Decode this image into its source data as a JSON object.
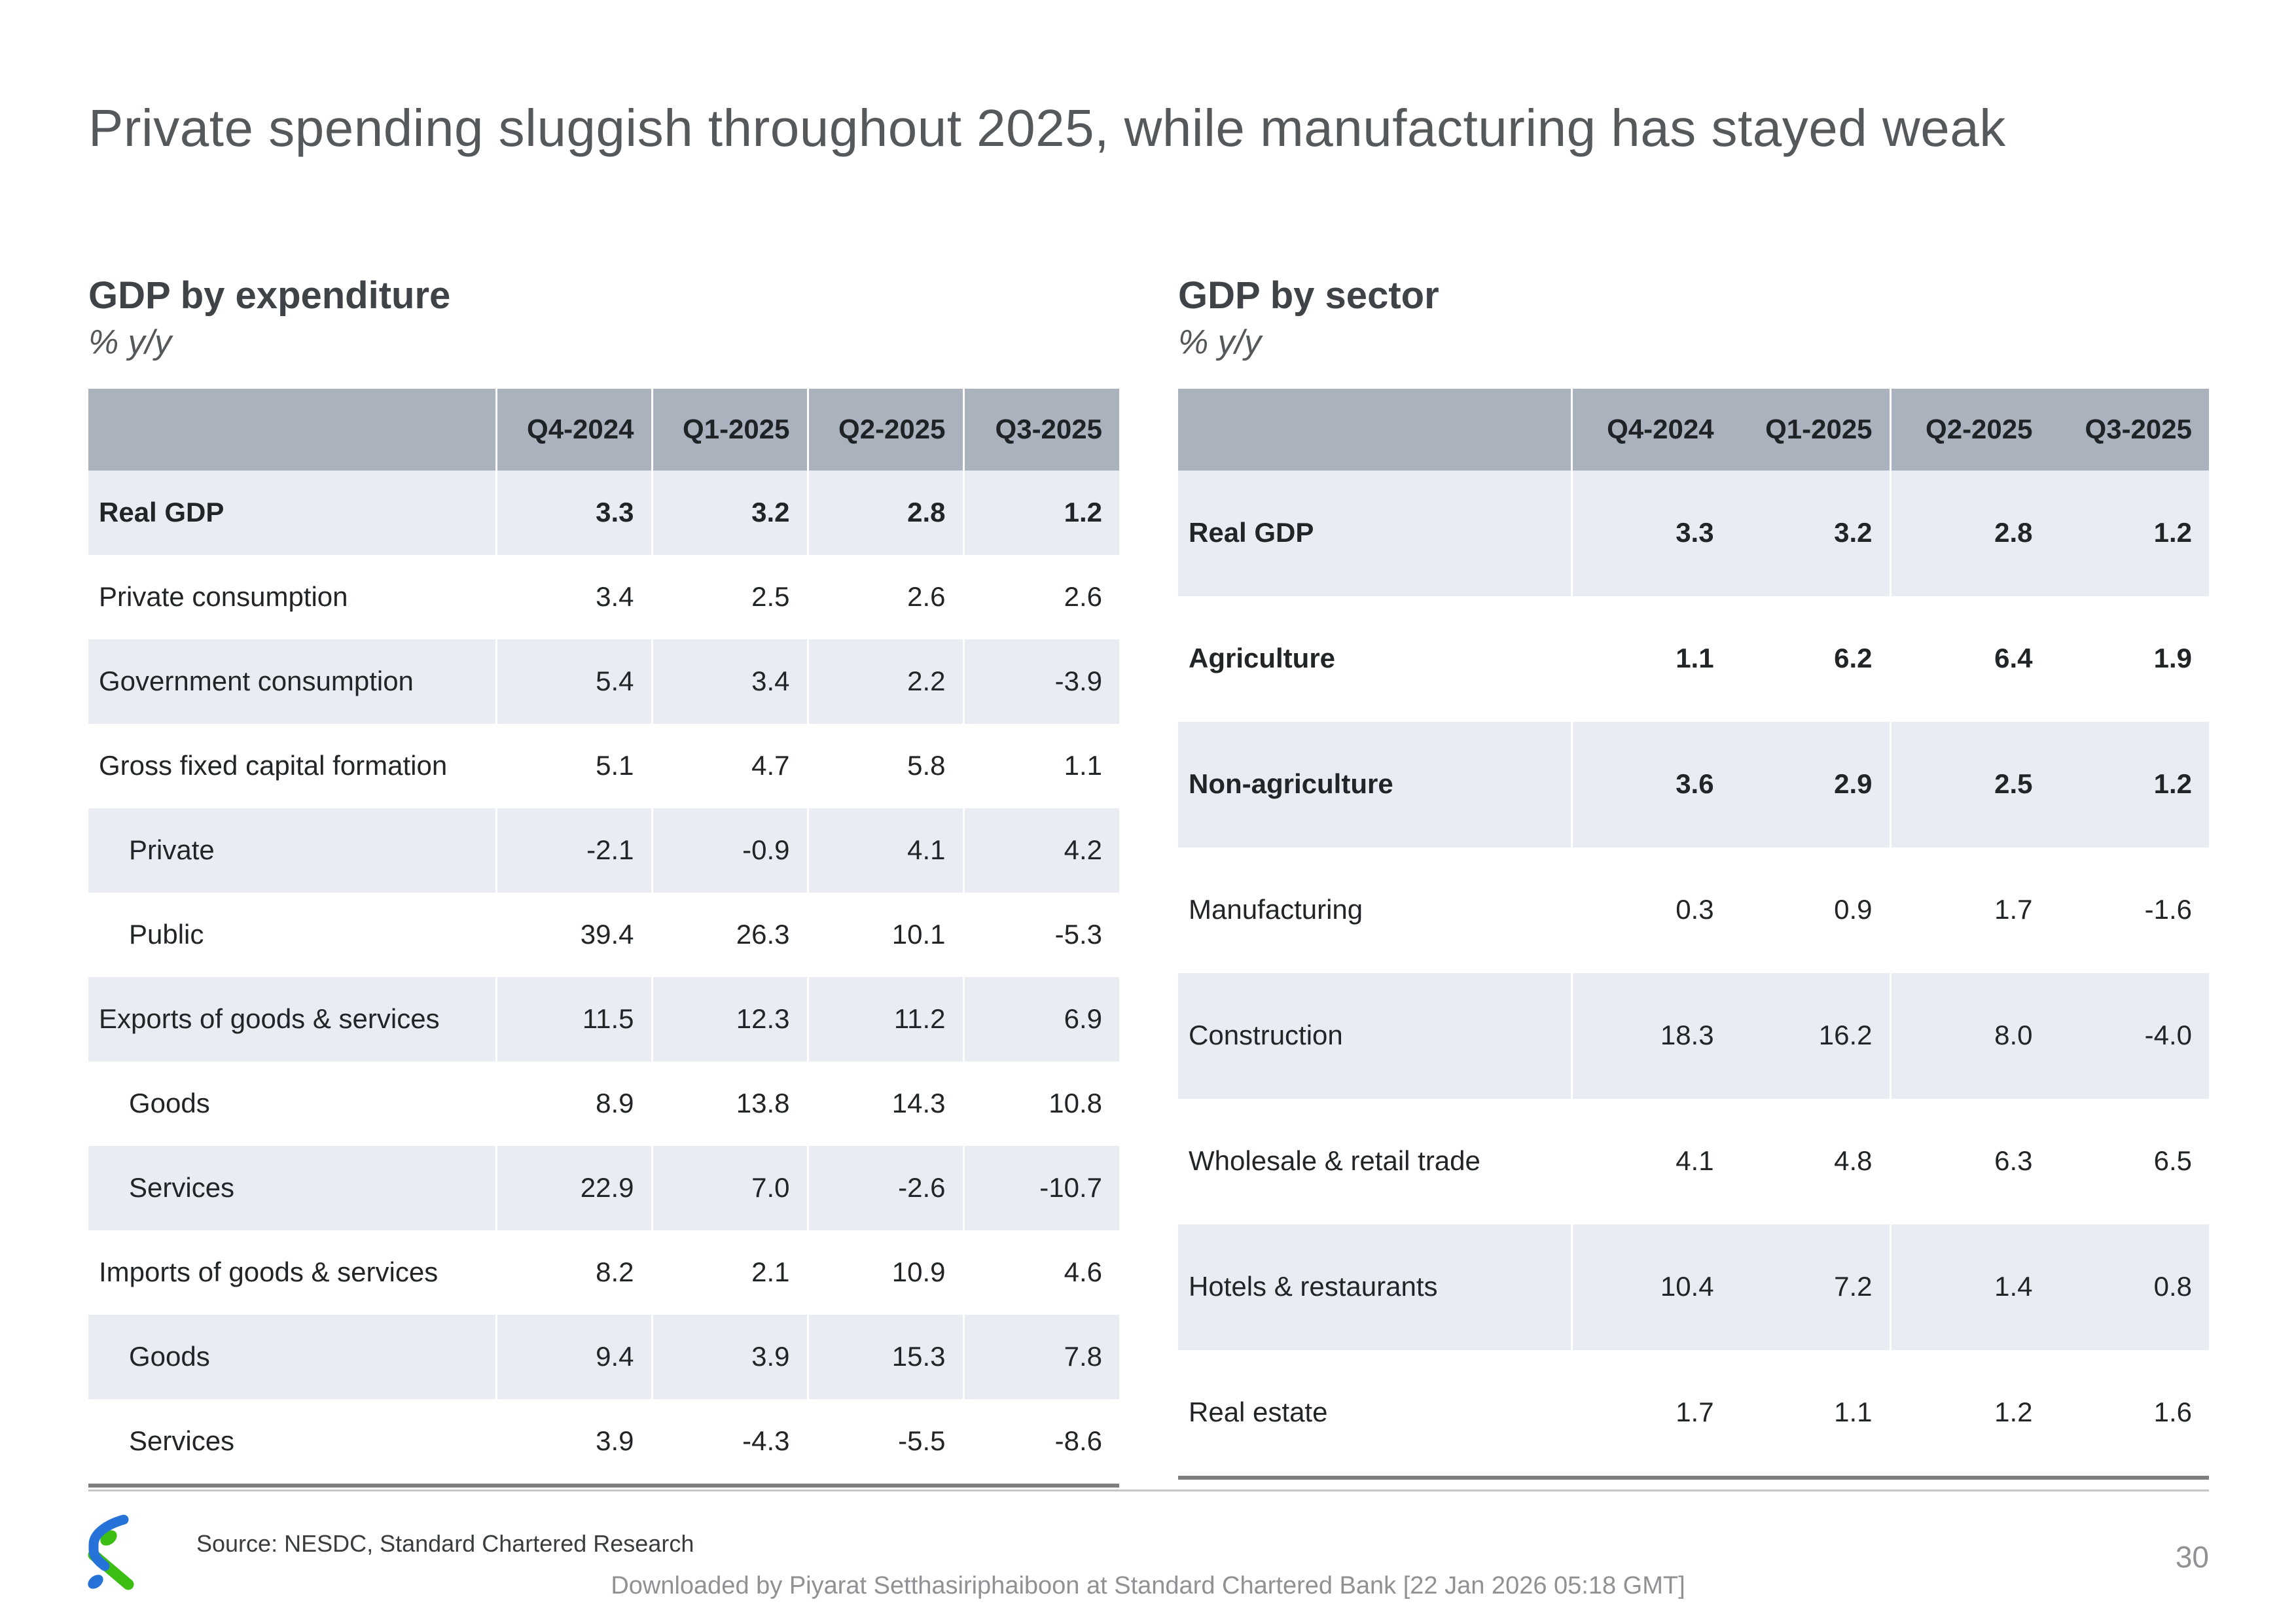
{
  "slide": {
    "title": "Private spending sluggish throughout 2025, while manufacturing has stayed weak",
    "page_number": "30"
  },
  "tables": [
    {
      "title": "GDP by expenditure",
      "subtitle": "% y/y",
      "columns": [
        "Q4-2024",
        "Q1-2025",
        "Q2-2025",
        "Q3-2025"
      ],
      "rows": [
        {
          "label": "Real GDP",
          "bold": true,
          "indent": false,
          "values": [
            "3.3",
            "3.2",
            "2.8",
            "1.2"
          ]
        },
        {
          "label": "Private consumption",
          "bold": false,
          "indent": false,
          "values": [
            "3.4",
            "2.5",
            "2.6",
            "2.6"
          ]
        },
        {
          "label": "Government consumption",
          "bold": false,
          "indent": false,
          "values": [
            "5.4",
            "3.4",
            "2.2",
            "-3.9"
          ]
        },
        {
          "label": "Gross fixed capital formation",
          "bold": false,
          "indent": false,
          "values": [
            "5.1",
            "4.7",
            "5.8",
            "1.1"
          ]
        },
        {
          "label": "Private",
          "bold": false,
          "indent": true,
          "values": [
            "-2.1",
            "-0.9",
            "4.1",
            "4.2"
          ]
        },
        {
          "label": "Public",
          "bold": false,
          "indent": true,
          "values": [
            "39.4",
            "26.3",
            "10.1",
            "-5.3"
          ]
        },
        {
          "label": "Exports of goods & services",
          "bold": false,
          "indent": false,
          "values": [
            "11.5",
            "12.3",
            "11.2",
            "6.9"
          ]
        },
        {
          "label": "Goods",
          "bold": false,
          "indent": true,
          "values": [
            "8.9",
            "13.8",
            "14.3",
            "10.8"
          ]
        },
        {
          "label": "Services",
          "bold": false,
          "indent": true,
          "values": [
            "22.9",
            "7.0",
            "-2.6",
            "-10.7"
          ]
        },
        {
          "label": "Imports of goods & services",
          "bold": false,
          "indent": false,
          "values": [
            "8.2",
            "2.1",
            "10.9",
            "4.6"
          ]
        },
        {
          "label": "Goods",
          "bold": false,
          "indent": true,
          "values": [
            "9.4",
            "3.9",
            "15.3",
            "7.8"
          ]
        },
        {
          "label": "Services",
          "bold": false,
          "indent": true,
          "values": [
            "3.9",
            "-4.3",
            "-5.5",
            "-8.6"
          ]
        }
      ]
    },
    {
      "title": "GDP by sector",
      "subtitle": "% y/y",
      "columns": [
        "Q4-2024",
        "Q1-2025",
        "Q2-2025",
        "Q3-2025"
      ],
      "rows": [
        {
          "label": "Real GDP",
          "bold": true,
          "indent": false,
          "values": [
            "3.3",
            "3.2",
            "2.8",
            "1.2"
          ]
        },
        {
          "label": "Agriculture",
          "bold": true,
          "indent": false,
          "values": [
            "1.1",
            "6.2",
            "6.4",
            "1.9"
          ]
        },
        {
          "label": "Non-agriculture",
          "bold": true,
          "indent": false,
          "values": [
            "3.6",
            "2.9",
            "2.5",
            "1.2"
          ]
        },
        {
          "label": "Manufacturing",
          "bold": false,
          "indent": false,
          "values": [
            "0.3",
            "0.9",
            "1.7",
            "-1.6"
          ]
        },
        {
          "label": "Construction",
          "bold": false,
          "indent": false,
          "values": [
            "18.3",
            "16.2",
            "8.0",
            "-4.0"
          ]
        },
        {
          "label": "Wholesale & retail trade",
          "bold": false,
          "indent": false,
          "values": [
            "4.1",
            "4.8",
            "6.3",
            "6.5"
          ]
        },
        {
          "label": "Hotels & restaurants",
          "bold": false,
          "indent": false,
          "values": [
            "10.4",
            "7.2",
            "1.4",
            "0.8"
          ]
        },
        {
          "label": "Real estate",
          "bold": false,
          "indent": false,
          "values": [
            "1.7",
            "1.1",
            "1.2",
            "1.6"
          ]
        }
      ]
    }
  ],
  "footer": {
    "source": "Source: NESDC, Standard Chartered Research",
    "downloaded": "Downloaded by Piyarat Setthasiriphaiboon at Standard Chartered Bank [22 Jan 2026 05:18 GMT]",
    "logo": "standard-chartered-trustmark-icon"
  },
  "colors": {
    "header_bg": "#a9b2bd",
    "row_alt_bg": "#e9edf3",
    "table_bottom_border": "#7f7f7f",
    "title_text": "#56595c",
    "cell_text": "#222527",
    "footer_muted": "#8f9194",
    "logo_blue": "#2772d8",
    "logo_green": "#3dbe14"
  }
}
